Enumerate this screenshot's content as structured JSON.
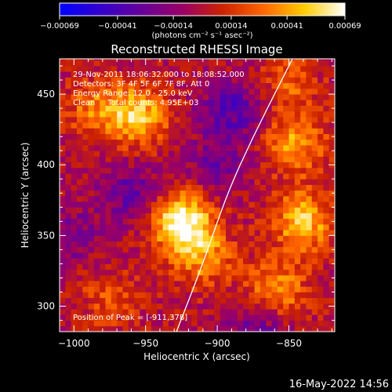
{
  "chart_data": {
    "type": "heatmap",
    "title": "Reconstructed RHESSI Image",
    "xlabel": "Heliocentric X (arcsec)",
    "ylabel": "Heliocentric Y (arcsec)",
    "xlim": [
      -1010,
      -818
    ],
    "ylim": [
      282,
      475
    ],
    "x_ticks": [
      -1000,
      -950,
      -900,
      -850
    ],
    "x_tick_labels": [
      "−1000",
      "−950",
      "−900",
      "−850"
    ],
    "y_ticks": [
      300,
      350,
      400,
      450
    ],
    "y_tick_labels": [
      "300",
      "350",
      "400",
      "450"
    ],
    "colorbar": {
      "ticks": [
        -0.00069,
        -0.00041,
        -0.00014,
        0.00014,
        0.00041,
        0.00069
      ],
      "tick_labels": [
        "−0.00069",
        "−0.00041",
        "−0.00014",
        "0.00014",
        "0.00041",
        "0.00069"
      ],
      "range": [
        -0.00069,
        0.00069
      ],
      "unit_label": "(photons cm⁻² s⁻¹ asec⁻²)",
      "colors": [
        "#0000ff",
        "#3300cc",
        "#660099",
        "#990066",
        "#cc2200",
        "#ff6600",
        "#ffcc00",
        "#ffffff"
      ]
    },
    "annotations": [
      "29-Nov-2011 18:06:32.000 to 18:08:52.000",
      "Detectors: 3F 4F 5F 6F 7F 8F, Att 0",
      "Energy Range: 12.0 - 25.0 keV",
      "Clean     Total counts: 4.95E+03",
      "Position of Peak = [-911,378]"
    ],
    "peak": [
      -911,
      378
    ],
    "sources": [
      {
        "x": -925,
        "y": 360,
        "value": 0.00069
      },
      {
        "x": -955,
        "y": 435,
        "value": 0.0005
      },
      {
        "x": -985,
        "y": 440,
        "value": 0.0003
      },
      {
        "x": -840,
        "y": 360,
        "value": 0.0005
      },
      {
        "x": -845,
        "y": 415,
        "value": 0.0004
      },
      {
        "x": -860,
        "y": 310,
        "value": 0.00045
      },
      {
        "x": -910,
        "y": 335,
        "value": 0.00035
      },
      {
        "x": -975,
        "y": 305,
        "value": 0.0002
      },
      {
        "x": -850,
        "y": 460,
        "value": 0.00025
      },
      {
        "x": -960,
        "y": 380,
        "value": -0.0003
      },
      {
        "x": -890,
        "y": 440,
        "value": -0.00035
      },
      {
        "x": -870,
        "y": 290,
        "value": -0.0003
      },
      {
        "x": -1000,
        "y": 350,
        "value": -0.0002
      },
      {
        "x": -900,
        "y": 400,
        "value": -0.00025
      }
    ],
    "limb_curve": [
      [
        -930,
        278
      ],
      [
        -910,
        330
      ],
      [
        -893,
        380
      ],
      [
        -875,
        420
      ],
      [
        -855,
        460
      ],
      [
        -840,
        490
      ]
    ]
  },
  "footer": {
    "timestamp": "16-May-2022 14:56"
  }
}
